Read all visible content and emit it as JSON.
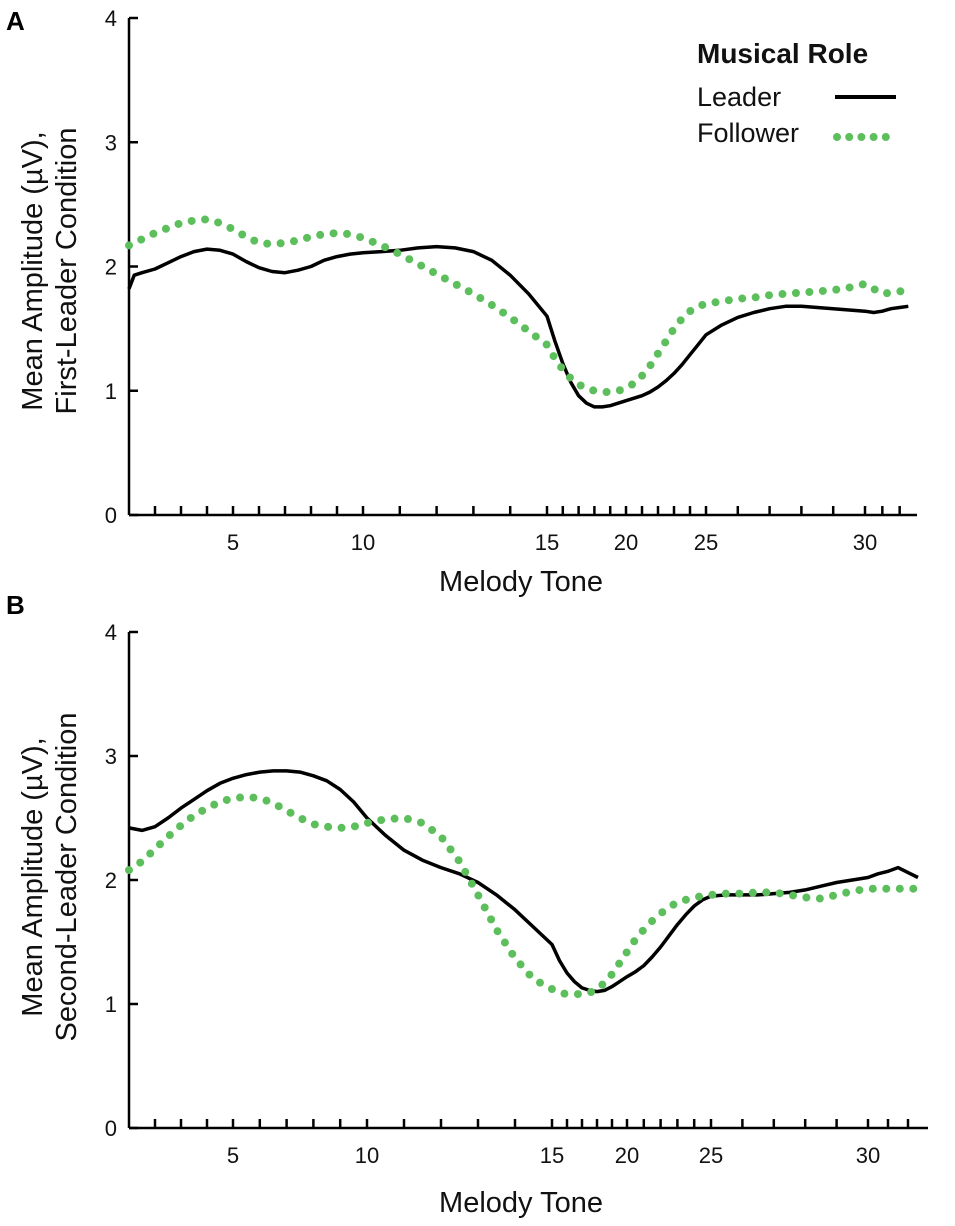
{
  "legend": {
    "title": "Musical Role",
    "items": [
      {
        "label": "Leader",
        "style": "solid",
        "color": "#000000"
      },
      {
        "label": "Follower",
        "style": "dotted",
        "color": "#5cbf5c"
      }
    ]
  },
  "chart_data": [
    {
      "panel": "A",
      "type": "line",
      "xlabel": "Melody Tone",
      "ylabel_line1": "Mean Amplitude (µV),",
      "ylabel_line2": "First-Leader Condition",
      "ylim": [
        0,
        4
      ],
      "xlim": [
        1,
        33
      ],
      "yticks": [
        "0",
        "1",
        "2",
        "3",
        "4"
      ],
      "xtick_labels": [
        "5",
        "10",
        "15",
        "20",
        "25",
        "30"
      ],
      "minor_ticks": [
        2,
        3,
        4,
        5,
        6,
        7,
        8,
        9,
        10,
        11,
        12,
        13,
        14,
        15,
        16,
        17,
        18,
        19,
        20,
        21,
        22,
        23,
        24,
        25,
        26,
        27,
        28,
        29,
        30,
        31,
        32
      ],
      "series": [
        {
          "name": "Leader",
          "x": [
            1.0,
            1.2,
            1.5,
            2.0,
            2.5,
            3.0,
            3.5,
            4.0,
            4.5,
            5.0,
            5.5,
            6.0,
            6.5,
            7.0,
            7.5,
            8.0,
            8.5,
            9.0,
            9.5,
            10.0,
            10.5,
            11.0,
            11.5,
            12.0,
            12.5,
            13.0,
            13.5,
            14.0,
            14.5,
            15.0,
            15.5,
            16.0,
            16.5,
            17.0,
            17.5,
            18.0,
            18.5,
            19.0,
            19.5,
            20.0,
            20.5,
            21.0,
            21.5,
            22.0,
            22.5,
            23.0,
            23.5,
            24.0,
            24.5,
            25.0,
            25.5,
            26.0,
            26.5,
            27.0,
            27.5,
            28.0,
            28.5,
            29.0,
            29.5,
            30.0,
            30.5,
            31.0,
            31.5,
            32.0,
            32.5
          ],
          "values": [
            1.82,
            1.93,
            1.95,
            1.98,
            2.03,
            2.08,
            2.12,
            2.14,
            2.13,
            2.1,
            2.04,
            1.99,
            1.96,
            1.95,
            1.97,
            2.0,
            2.05,
            2.08,
            2.1,
            2.11,
            2.12,
            2.13,
            2.15,
            2.16,
            2.15,
            2.12,
            2.05,
            1.93,
            1.78,
            1.6,
            1.4,
            1.22,
            1.07,
            0.96,
            0.9,
            0.87,
            0.87,
            0.88,
            0.9,
            0.92,
            0.94,
            0.96,
            0.99,
            1.03,
            1.08,
            1.14,
            1.21,
            1.29,
            1.37,
            1.45,
            1.53,
            1.59,
            1.63,
            1.66,
            1.68,
            1.68,
            1.67,
            1.66,
            1.65,
            1.64,
            1.63,
            1.64,
            1.66,
            1.67,
            1.68
          ]
        },
        {
          "name": "Follower",
          "x": [
            1.0,
            1.5,
            2.0,
            2.5,
            3.0,
            3.5,
            4.0,
            4.5,
            5.0,
            5.5,
            6.0,
            6.5,
            7.0,
            7.5,
            8.0,
            8.5,
            9.0,
            9.5,
            10.0,
            10.5,
            11.0,
            11.5,
            12.0,
            12.5,
            13.0,
            13.5,
            14.0,
            14.5,
            15.0,
            15.5,
            16.0,
            16.5,
            17.0,
            17.5,
            18.0,
            18.5,
            19.0,
            19.5,
            20.0,
            20.5,
            21.0,
            21.5,
            22.0,
            22.5,
            23.0,
            23.5,
            24.0,
            24.5,
            25.0,
            25.5,
            26.0,
            26.5,
            27.0,
            27.5,
            28.0,
            28.5,
            29.0,
            29.5,
            30.0,
            30.5,
            31.0,
            31.5,
            32.0,
            32.5
          ],
          "values": [
            2.17,
            2.22,
            2.27,
            2.31,
            2.35,
            2.37,
            2.38,
            2.35,
            2.3,
            2.24,
            2.19,
            2.18,
            2.19,
            2.21,
            2.24,
            2.26,
            2.27,
            2.26,
            2.23,
            2.17,
            2.1,
            2.02,
            1.94,
            1.86,
            1.78,
            1.69,
            1.59,
            1.48,
            1.37,
            1.26,
            1.17,
            1.1,
            1.05,
            1.02,
            1.0,
            0.99,
            0.99,
            1.0,
            1.02,
            1.06,
            1.12,
            1.2,
            1.3,
            1.4,
            1.5,
            1.58,
            1.64,
            1.68,
            1.7,
            1.72,
            1.74,
            1.75,
            1.77,
            1.78,
            1.79,
            1.8,
            1.81,
            1.83,
            1.86,
            1.82,
            1.78,
            1.79,
            1.8,
            1.81
          ]
        }
      ]
    },
    {
      "panel": "B",
      "type": "line",
      "xlabel": "Melody Tone",
      "ylabel_line1": "Mean Amplitude (µV),",
      "ylabel_line2": "Second-Leader Condition",
      "ylim": [
        0,
        4
      ],
      "xlim": [
        1,
        33
      ],
      "yticks": [
        "0",
        "1",
        "2",
        "3",
        "4"
      ],
      "xtick_labels": [
        "5",
        "10",
        "15",
        "20",
        "25",
        "30"
      ],
      "minor_ticks": [
        2,
        3,
        4,
        5,
        6,
        7,
        8,
        9,
        10,
        11,
        12,
        13,
        14,
        15,
        16,
        17,
        18,
        19,
        20,
        21,
        22,
        23,
        24,
        25,
        26,
        27,
        28,
        29,
        30,
        31,
        32
      ],
      "series": [
        {
          "name": "Leader",
          "x": [
            1.0,
            1.5,
            2.0,
            2.5,
            3.0,
            3.5,
            4.0,
            4.5,
            5.0,
            5.5,
            6.0,
            6.5,
            7.0,
            7.5,
            8.0,
            8.5,
            9.0,
            9.5,
            10.0,
            10.5,
            11.0,
            11.5,
            12.0,
            12.5,
            13.0,
            13.5,
            14.0,
            14.5,
            15.0,
            15.5,
            16.0,
            16.5,
            17.0,
            17.5,
            18.0,
            18.5,
            19.0,
            19.5,
            20.0,
            20.5,
            21.0,
            21.5,
            22.0,
            22.5,
            23.0,
            23.5,
            24.0,
            24.5,
            25.0,
            25.5,
            26.0,
            26.5,
            27.0,
            27.5,
            28.0,
            28.5,
            29.0,
            29.5,
            30.0,
            30.5,
            31.0,
            31.5,
            32.0,
            32.5
          ],
          "values": [
            2.42,
            2.4,
            2.43,
            2.5,
            2.58,
            2.65,
            2.72,
            2.78,
            2.82,
            2.85,
            2.87,
            2.88,
            2.88,
            2.87,
            2.84,
            2.8,
            2.73,
            2.63,
            2.5,
            2.36,
            2.24,
            2.16,
            2.1,
            2.05,
            1.98,
            1.88,
            1.76,
            1.62,
            1.48,
            1.35,
            1.25,
            1.18,
            1.13,
            1.11,
            1.1,
            1.11,
            1.14,
            1.18,
            1.22,
            1.26,
            1.31,
            1.38,
            1.46,
            1.55,
            1.64,
            1.72,
            1.79,
            1.84,
            1.87,
            1.88,
            1.88,
            1.88,
            1.89,
            1.9,
            1.92,
            1.95,
            1.98,
            2.0,
            2.02,
            2.05,
            2.07,
            2.1,
            2.06,
            2.02
          ]
        },
        {
          "name": "Follower",
          "x": [
            1.0,
            1.5,
            2.0,
            2.5,
            3.0,
            3.5,
            4.0,
            4.5,
            5.0,
            5.5,
            6.0,
            6.5,
            7.0,
            7.5,
            8.0,
            8.5,
            9.0,
            9.5,
            10.0,
            10.5,
            11.0,
            11.5,
            12.0,
            12.5,
            13.0,
            13.5,
            14.0,
            14.5,
            15.0,
            15.5,
            16.0,
            16.5,
            17.0,
            17.5,
            18.0,
            18.5,
            19.0,
            19.5,
            20.0,
            20.5,
            21.0,
            21.5,
            22.0,
            22.5,
            23.0,
            23.5,
            24.0,
            24.5,
            25.0,
            25.5,
            26.0,
            26.5,
            27.0,
            27.5,
            28.0,
            28.5,
            29.0,
            29.5,
            30.0,
            30.5,
            31.0,
            31.5,
            32.0,
            32.5
          ],
          "values": [
            2.08,
            2.15,
            2.25,
            2.35,
            2.44,
            2.52,
            2.58,
            2.63,
            2.66,
            2.67,
            2.66,
            2.62,
            2.56,
            2.5,
            2.45,
            2.43,
            2.42,
            2.43,
            2.46,
            2.49,
            2.5,
            2.46,
            2.35,
            2.15,
            1.88,
            1.6,
            1.37,
            1.2,
            1.12,
            1.09,
            1.08,
            1.08,
            1.08,
            1.09,
            1.12,
            1.17,
            1.24,
            1.33,
            1.42,
            1.52,
            1.6,
            1.67,
            1.73,
            1.78,
            1.82,
            1.84,
            1.86,
            1.87,
            1.88,
            1.89,
            1.89,
            1.9,
            1.9,
            1.88,
            1.86,
            1.85,
            1.88,
            1.91,
            1.93,
            1.93,
            1.93,
            1.93,
            1.93,
            1.93
          ]
        }
      ]
    }
  ]
}
